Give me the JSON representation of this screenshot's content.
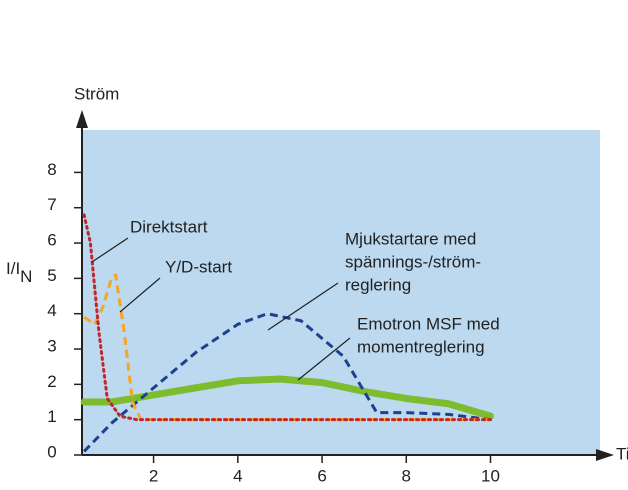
{
  "chart_data": {
    "type": "line",
    "ylabel_top": "Ström",
    "ylabel": "I/I",
    "ylabel_sub": "N",
    "xlabel": "Tid",
    "xlim": [
      0.3,
      12.6
    ],
    "ylim": [
      0,
      9.2
    ],
    "xticks": [
      2,
      4,
      6,
      8,
      10
    ],
    "yticks": [
      0,
      1,
      2,
      3,
      4,
      5,
      6,
      7,
      8
    ],
    "background": "#bcd9ef",
    "series": [
      {
        "label": [
          "Direktstart"
        ],
        "color": "#c0262d",
        "style": "dotted",
        "x": [
          0.35,
          0.5,
          0.7,
          0.9,
          1.2,
          1.6,
          10
        ],
        "values": [
          6.8,
          6.0,
          3.5,
          1.6,
          1.1,
          1.0,
          1.0
        ]
      },
      {
        "label": [
          "Y/D-start"
        ],
        "color": "#f5a623",
        "style": "dashed",
        "x": [
          0.35,
          0.6,
          0.8,
          1.0,
          1.1,
          1.3,
          1.5,
          1.7,
          10
        ],
        "values": [
          3.9,
          3.7,
          4.2,
          5.0,
          5.1,
          3.5,
          1.5,
          1.0,
          1.0
        ]
      },
      {
        "label": [
          "Mjukstartare med",
          "spännings-/ström-",
          "reglering"
        ],
        "color": "#1f3f8f",
        "style": "dashed",
        "x": [
          0.35,
          1,
          2,
          3,
          4,
          4.7,
          5.5,
          6.5,
          7,
          7.3,
          8,
          9,
          10
        ],
        "values": [
          0.1,
          0.9,
          1.9,
          2.9,
          3.7,
          4.0,
          3.8,
          2.8,
          1.8,
          1.2,
          1.2,
          1.15,
          1.0
        ]
      },
      {
        "label": [
          "Emotron MSF med",
          "momentreglering"
        ],
        "color": "#7cbc2e",
        "style": "thick",
        "x": [
          0.35,
          1,
          2,
          3,
          4,
          5,
          6,
          7,
          8,
          9,
          10
        ],
        "values": [
          1.5,
          1.5,
          1.7,
          1.9,
          2.1,
          2.15,
          2.05,
          1.8,
          1.6,
          1.45,
          1.1
        ]
      }
    ]
  }
}
